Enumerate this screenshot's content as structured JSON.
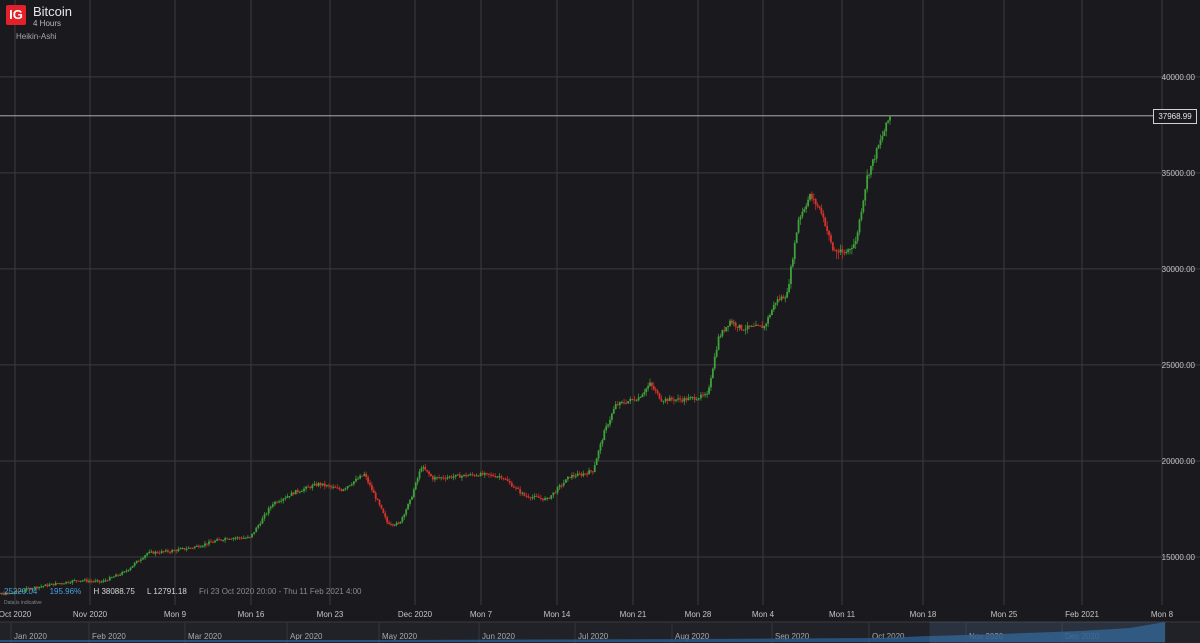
{
  "header": {
    "logo": "IG",
    "instrument": "Bitcoin",
    "interval": "4 Hours",
    "chart_type": "Heikin-Ashi"
  },
  "stats": {
    "last": "25220.04",
    "change": "195.96%",
    "high": "H 38088.75",
    "low": "L 12791.18",
    "range": "Fri 23 Oct 2020 20:00 - Thu 11 Feb 2021 4:00"
  },
  "source": "Data is indicative",
  "price_tag": "37968.99",
  "colors": {
    "background": "#1a1a1e",
    "up": "#3fa33a",
    "down": "#d9322b",
    "grid": "#3a3a40",
    "navigator": "#2a5a8a"
  },
  "chart_data": {
    "type": "candlestick",
    "ylim": [
      12500,
      44000
    ],
    "y_ticks": [
      15000,
      20000,
      25000,
      30000,
      35000,
      40000
    ],
    "y_tick_labels": [
      "15000.00",
      "20000.00",
      "25000.00",
      "30000.00",
      "35000.00",
      "40000.00"
    ],
    "current_price": 37968.99,
    "x_tick_labels": [
      "Oct 2020",
      "Nov 2020",
      "Mon 9",
      "Mon 16",
      "Mon 23",
      "Dec 2020",
      "Mon 7",
      "Mon 14",
      "Mon 21",
      "Mon 28",
      "Mon 4",
      "Mon 11",
      "Mon 18",
      "Mon 25",
      "Feb 2021",
      "Mon 8"
    ],
    "navigator_labels": [
      "Jan 2020",
      "Feb 2020",
      "Mar 2020",
      "Apr 2020",
      "May 2020",
      "Jun 2020",
      "Jul 2020",
      "Aug 2020",
      "Sep 2020",
      "Oct 2020",
      "Nov 2020",
      "Dec 2020"
    ],
    "path": [
      [
        "2020-10-23",
        13000
      ],
      [
        "2020-10-26",
        13100
      ],
      [
        "2020-10-28",
        13400
      ],
      [
        "2020-10-30",
        13600
      ],
      [
        "2020-11-01",
        13800
      ],
      [
        "2020-11-03",
        13700
      ],
      [
        "2020-11-05",
        14200
      ],
      [
        "2020-11-07",
        15200
      ],
      [
        "2020-11-09",
        15300
      ],
      [
        "2020-11-11",
        15500
      ],
      [
        "2020-11-14",
        16000
      ],
      [
        "2020-11-16",
        16000
      ],
      [
        "2020-11-18",
        17800
      ],
      [
        "2020-11-20",
        18400
      ],
      [
        "2020-11-22",
        18800
      ],
      [
        "2020-11-24",
        18500
      ],
      [
        "2020-11-26",
        19300
      ],
      [
        "2020-11-27",
        18100
      ],
      [
        "2020-11-28",
        16800
      ],
      [
        "2020-11-29",
        16700
      ],
      [
        "2020-11-30",
        17900
      ],
      [
        "2020-12-01",
        19700
      ],
      [
        "2020-12-02",
        19100
      ],
      [
        "2020-12-04",
        19200
      ],
      [
        "2020-12-06",
        19300
      ],
      [
        "2020-12-08",
        19200
      ],
      [
        "2020-12-10",
        18200
      ],
      [
        "2020-12-12",
        18000
      ],
      [
        "2020-12-14",
        19200
      ],
      [
        "2020-12-15",
        19300
      ],
      [
        "2020-12-16",
        19500
      ],
      [
        "2020-12-17",
        21500
      ],
      [
        "2020-12-18",
        22900
      ],
      [
        "2020-12-20",
        23300
      ],
      [
        "2020-12-21",
        24000
      ],
      [
        "2020-12-22",
        23200
      ],
      [
        "2020-12-24",
        23200
      ],
      [
        "2020-12-26",
        23400
      ],
      [
        "2020-12-27",
        26400
      ],
      [
        "2020-12-28",
        27300
      ],
      [
        "2020-12-29",
        26900
      ],
      [
        "2020-12-31",
        27000
      ],
      [
        "2021-01-01",
        28300
      ],
      [
        "2021-01-02",
        28700
      ],
      [
        "2021-01-03",
        32600
      ],
      [
        "2021-01-04",
        33800
      ],
      [
        "2021-01-05",
        33000
      ],
      [
        "2021-01-06",
        31000
      ],
      [
        "2021-01-07",
        30800
      ],
      [
        "2021-01-08",
        31400
      ],
      [
        "2021-01-09",
        34800
      ],
      [
        "2021-01-10",
        36400
      ],
      [
        "2021-01-11",
        37968.99
      ]
    ]
  }
}
